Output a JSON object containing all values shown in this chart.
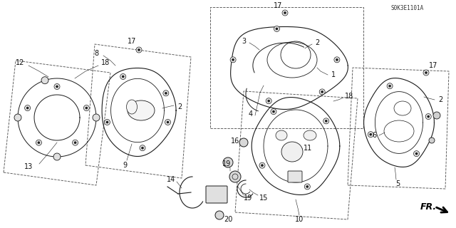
{
  "bg_color": "#ffffff",
  "line_color": "#1a1a1a",
  "part_number_text": "S0K3E1101A",
  "fr_label": "FR.",
  "label_fontsize": 7.0,
  "partnum_fontsize": 5.5
}
